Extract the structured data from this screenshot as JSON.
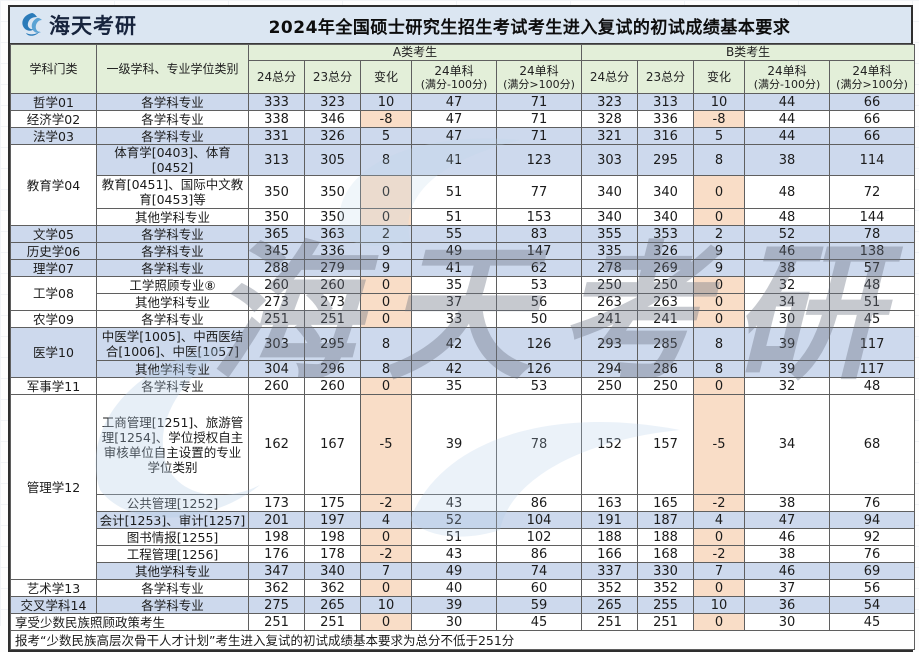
{
  "logo": {
    "brand": "海天考研",
    "icon": "swoosh-logo"
  },
  "title": "2024年全国硕士研究生招生考试考生进入复试的初试成绩基本要求",
  "watermark": "海天考研",
  "colors": {
    "title_band": "#dbe6f2",
    "header_green": "#e3efd9",
    "row_blue": "#cdd9ed",
    "row_white": "#ffffff",
    "delta_peach": "#f9ddc7",
    "logo_blue": "#2b7bb9"
  },
  "columns": {
    "category": "学科门类",
    "major": "一级学科、专业学位类别",
    "groupA": "A类考生",
    "groupB": "B类考生",
    "total24": "24总分",
    "total23": "23总分",
    "change": "变化",
    "single100": "24单科",
    "single100_sub": "(满分-100分)",
    "singleOver100": "24单科",
    "singleOver100_sub": "(满分>100分)"
  },
  "rows": [
    {
      "category": "哲学01",
      "span": 1,
      "major": "各学科专业",
      "shade": "blue",
      "a": [
        "333",
        "323",
        "10",
        "47",
        "71"
      ],
      "b": [
        "323",
        "313",
        "10",
        "44",
        "66"
      ]
    },
    {
      "category": "经济学02",
      "span": 1,
      "major": "各学科专业",
      "shade": "white",
      "a": [
        "338",
        "346",
        "-8",
        "47",
        "71"
      ],
      "b": [
        "328",
        "336",
        "-8",
        "44",
        "66"
      ]
    },
    {
      "category": "法学03",
      "span": 1,
      "major": "各学科专业",
      "shade": "blue",
      "a": [
        "331",
        "326",
        "5",
        "47",
        "71"
      ],
      "b": [
        "321",
        "316",
        "5",
        "44",
        "66"
      ]
    },
    {
      "category": "教育学04",
      "span": 3,
      "catShade": "white",
      "major": "体育学[0403]、体育[0452]",
      "shade": "blue",
      "a": [
        "313",
        "305",
        "8",
        "41",
        "123"
      ],
      "b": [
        "303",
        "295",
        "8",
        "38",
        "114"
      ]
    },
    {
      "major": "教育[0451]、国际中文教育[0453]等",
      "shade": "white",
      "h": "tall",
      "a": [
        "350",
        "350",
        "0",
        "51",
        "77"
      ],
      "b": [
        "340",
        "340",
        "0",
        "48",
        "72"
      ]
    },
    {
      "major": "其他学科专业",
      "shade": "white",
      "a": [
        "350",
        "350",
        "0",
        "51",
        "153"
      ],
      "b": [
        "340",
        "340",
        "0",
        "48",
        "144"
      ]
    },
    {
      "category": "文学05",
      "span": 1,
      "major": "各学科专业",
      "shade": "blue",
      "a": [
        "365",
        "363",
        "2",
        "55",
        "83"
      ],
      "b": [
        "355",
        "353",
        "2",
        "52",
        "78"
      ]
    },
    {
      "category": "历史学06",
      "span": 1,
      "major": "各学科专业",
      "shade": "blue",
      "a": [
        "345",
        "336",
        "9",
        "49",
        "147"
      ],
      "b": [
        "335",
        "326",
        "9",
        "46",
        "138"
      ]
    },
    {
      "category": "理学07",
      "span": 1,
      "major": "各学科专业",
      "shade": "blue",
      "a": [
        "288",
        "279",
        "9",
        "41",
        "62"
      ],
      "b": [
        "278",
        "269",
        "9",
        "38",
        "57"
      ]
    },
    {
      "category": "工学08",
      "span": 2,
      "catShade": "white",
      "major": "工学照顾专业⑧",
      "shade": "white",
      "a": [
        "260",
        "260",
        "0",
        "35",
        "53"
      ],
      "b": [
        "250",
        "250",
        "0",
        "32",
        "48"
      ]
    },
    {
      "major": "其他学科专业",
      "shade": "white",
      "a": [
        "273",
        "273",
        "0",
        "37",
        "56"
      ],
      "b": [
        "263",
        "263",
        "0",
        "34",
        "51"
      ]
    },
    {
      "category": "农学09",
      "span": 1,
      "major": "各学科专业",
      "shade": "white",
      "a": [
        "251",
        "251",
        "0",
        "33",
        "50"
      ],
      "b": [
        "241",
        "241",
        "0",
        "30",
        "45"
      ]
    },
    {
      "category": "医学10",
      "span": 2,
      "catShade": "blue",
      "major": "中医学[1005]、中西医结合[1006]、中医[1057]",
      "shade": "blue",
      "h": "tall",
      "a": [
        "303",
        "295",
        "8",
        "42",
        "126"
      ],
      "b": [
        "293",
        "285",
        "8",
        "39",
        "117"
      ]
    },
    {
      "major": "其他学科专业",
      "shade": "blue",
      "a": [
        "304",
        "296",
        "8",
        "42",
        "126"
      ],
      "b": [
        "294",
        "286",
        "8",
        "39",
        "117"
      ]
    },
    {
      "category": "军事学11",
      "span": 1,
      "major": "各学科专业",
      "shade": "white",
      "a": [
        "260",
        "260",
        "0",
        "35",
        "53"
      ],
      "b": [
        "250",
        "250",
        "0",
        "32",
        "48"
      ]
    },
    {
      "category": "管理学12",
      "span": 6,
      "catShade": "white",
      "major": "工商管理[1251]、旅游管理[1254]、学位授权自主审核单位自主设置的专业学位类别",
      "shade": "white",
      "h": "xtall",
      "a": [
        "162",
        "167",
        "-5",
        "39",
        "78"
      ],
      "b": [
        "152",
        "157",
        "-5",
        "34",
        "68"
      ]
    },
    {
      "major": "公共管理[1252]",
      "shade": "white",
      "a": [
        "173",
        "175",
        "-2",
        "43",
        "86"
      ],
      "b": [
        "163",
        "165",
        "-2",
        "38",
        "76"
      ]
    },
    {
      "major": "会计[1253]、审计[1257]",
      "shade": "blue",
      "a": [
        "201",
        "197",
        "4",
        "52",
        "104"
      ],
      "b": [
        "191",
        "187",
        "4",
        "47",
        "94"
      ]
    },
    {
      "major": "图书情报[1255]",
      "shade": "white",
      "a": [
        "198",
        "198",
        "0",
        "51",
        "102"
      ],
      "b": [
        "188",
        "188",
        "0",
        "46",
        "92"
      ]
    },
    {
      "major": "工程管理[1256]",
      "shade": "white",
      "a": [
        "176",
        "178",
        "-2",
        "43",
        "86"
      ],
      "b": [
        "166",
        "168",
        "-2",
        "38",
        "76"
      ]
    },
    {
      "major": "其他学科专业",
      "shade": "blue",
      "a": [
        "347",
        "340",
        "7",
        "49",
        "74"
      ],
      "b": [
        "337",
        "330",
        "7",
        "46",
        "69"
      ]
    },
    {
      "category": "艺术学13",
      "span": 1,
      "major": "各学科专业",
      "shade": "white",
      "a": [
        "362",
        "362",
        "0",
        "40",
        "60"
      ],
      "b": [
        "352",
        "352",
        "0",
        "37",
        "56"
      ]
    },
    {
      "category": "交叉学科14",
      "span": 1,
      "major": "各学科专业",
      "shade": "blue",
      "a": [
        "275",
        "265",
        "10",
        "39",
        "59"
      ],
      "b": [
        "265",
        "255",
        "10",
        "36",
        "54"
      ]
    }
  ],
  "special_row": {
    "label": "享受少数民族照顾政策考生",
    "a": [
      "251",
      "251",
      "0",
      "30",
      "45"
    ],
    "b": [
      "251",
      "251",
      "0",
      "30",
      "45"
    ]
  },
  "footnote": "报考“少数民族高层次骨干人才计划”考生进入复试的初试成绩基本要求为总分不低于251分"
}
